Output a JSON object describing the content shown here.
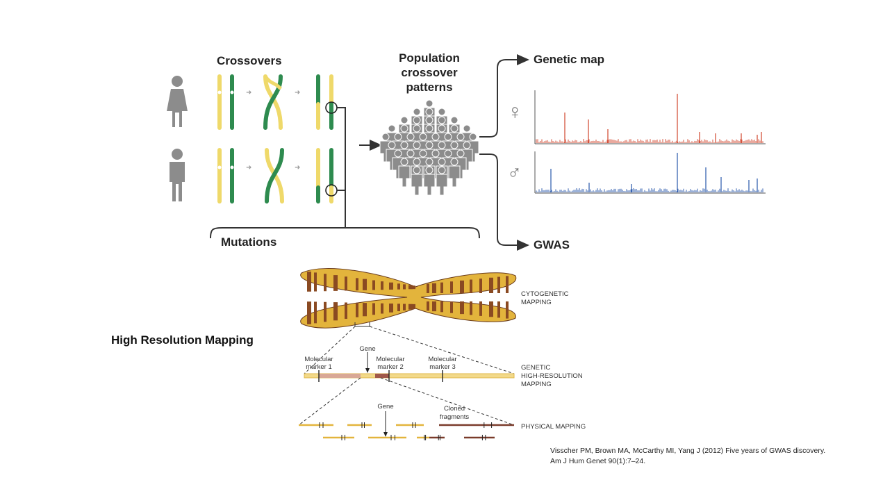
{
  "top_panel": {
    "crossovers_title": "Crossovers",
    "population_title_lines": [
      "Population",
      "crossover",
      "patterns"
    ],
    "genetic_map_label": "Genetic map",
    "gwas_label": "GWAS",
    "mutations_label": "Mutations",
    "female_symbol": "♀",
    "male_symbol": "♂",
    "colors": {
      "yellow": "#efd96a",
      "green": "#2e8b4f",
      "female_trace": "#d4533c",
      "male_trace": "#3763b0",
      "person": "#8c8c8c"
    }
  },
  "bottom_panel": {
    "title": "High Resolution Mapping",
    "cytogenetic_label_lines": [
      "CYTOGENETIC",
      "MAPPING"
    ],
    "genetic_label_lines": [
      "GENETIC",
      "HIGH-RESOLUTION",
      "MAPPING"
    ],
    "physical_label": "PHYSICAL MAPPING",
    "gene_label": "Gene",
    "marker1_lines": [
      "Molecular",
      "marker 1"
    ],
    "marker2_lines": [
      "Molecular",
      "marker 2"
    ],
    "marker3_lines": [
      "Molecular",
      "marker 3"
    ],
    "gene_label_2": "Gene",
    "cloned_lines": [
      "Cloned",
      "fragments"
    ],
    "colors": {
      "chromo_fill": "#e3b43c",
      "chromo_band": "#8a4a22",
      "map_line": "#e8c04a",
      "fragment_dark": "#7a3b2a"
    }
  },
  "citation": {
    "line1": "Visscher PM, Brown MA, McCarthy MI, Yang J (2012) Five years of GWAS discovery.",
    "line2": "Am J Hum Genet 90(1):7–24."
  }
}
